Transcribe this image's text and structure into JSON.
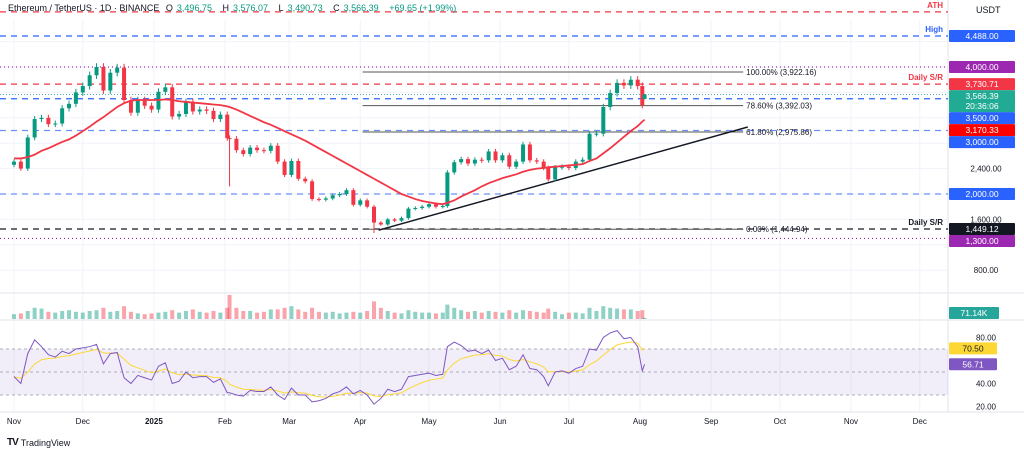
{
  "header": {
    "symbol": "Ethereum / TetherUS · 1D · BINANCE",
    "open_label": "O",
    "open": "3,496.75",
    "high_label": "H",
    "high": "3,576.07",
    "low_label": "L",
    "low": "3,490.73",
    "close_label": "C",
    "close": "3,566.39",
    "change": "+69.65 (+1.99%)"
  },
  "currency": "USDT",
  "branding": {
    "logo_text": "TradingView",
    "logo_mark": "17"
  },
  "colors": {
    "up": "#089981",
    "down": "#f23645",
    "ma": "#f23645",
    "rsi": "#7e57c2",
    "rsi_ma": "#fdd835",
    "level_blue": "#2962ff",
    "level_light_blue": "#6e8ff7",
    "level_purple": "#9c27b0",
    "level_red": "#f23645",
    "level_black": "#131722"
  },
  "chart_data": {
    "type": "candlestick",
    "title": "",
    "x_ticks": [
      "Nov",
      "Dec",
      "2025",
      "Feb",
      "Mar",
      "Apr",
      "May",
      "Jun",
      "Jul",
      "Aug",
      "Sep",
      "Oct",
      "Nov",
      "Dec"
    ],
    "x_tick_dates": [
      "2024-11-01",
      "2024-12-01",
      "2025-01-01",
      "2025-02-01",
      "2025-03-01",
      "2025-04-01",
      "2025-05-01",
      "2025-06-01",
      "2025-07-01",
      "2025-08-01",
      "2025-09-01",
      "2025-10-01",
      "2025-11-01",
      "2025-12-01"
    ],
    "y_ticks": [
      "2,400.00",
      "1,600.00",
      "800.00"
    ],
    "y_tick_values": [
      2400,
      1600,
      800
    ],
    "grid": true,
    "series": [
      {
        "d": "2024-11-01",
        "c": 2510,
        "ma": 2560,
        "rsi": 46,
        "v": 300
      },
      {
        "d": "2024-11-04",
        "c": 2400,
        "ma": 2560,
        "rsi": 40,
        "v": 350
      },
      {
        "d": "2024-11-07",
        "c": 2890,
        "ma": 2580,
        "rsi": 66,
        "v": 500
      },
      {
        "d": "2024-11-10",
        "c": 3180,
        "ma": 2620,
        "rsi": 78,
        "v": 700
      },
      {
        "d": "2024-11-13",
        "c": 3200,
        "ma": 2680,
        "rsi": 72,
        "v": 650
      },
      {
        "d": "2024-11-16",
        "c": 3100,
        "ma": 2720,
        "rsi": 65,
        "v": 450
      },
      {
        "d": "2024-11-19",
        "c": 3110,
        "ma": 2770,
        "rsi": 63,
        "v": 400
      },
      {
        "d": "2024-11-22",
        "c": 3350,
        "ma": 2820,
        "rsi": 68,
        "v": 500
      },
      {
        "d": "2024-11-25",
        "c": 3420,
        "ma": 2860,
        "rsi": 66,
        "v": 550
      },
      {
        "d": "2024-11-28",
        "c": 3600,
        "ma": 2920,
        "rsi": 70,
        "v": 450
      },
      {
        "d": "2024-12-01",
        "c": 3700,
        "ma": 2990,
        "rsi": 71,
        "v": 400
      },
      {
        "d": "2024-12-04",
        "c": 3870,
        "ma": 3060,
        "rsi": 72,
        "v": 500
      },
      {
        "d": "2024-12-07",
        "c": 4000,
        "ma": 3140,
        "rsi": 74,
        "v": 550
      },
      {
        "d": "2024-12-10",
        "c": 3630,
        "ma": 3210,
        "rsi": 57,
        "v": 700
      },
      {
        "d": "2024-12-13",
        "c": 3910,
        "ma": 3290,
        "rsi": 66,
        "v": 450
      },
      {
        "d": "2024-12-16",
        "c": 3990,
        "ma": 3370,
        "rsi": 67,
        "v": 500
      },
      {
        "d": "2024-12-19",
        "c": 3480,
        "ma": 3430,
        "rsi": 45,
        "v": 800
      },
      {
        "d": "2024-12-22",
        "c": 3280,
        "ma": 3470,
        "rsi": 40,
        "v": 450
      },
      {
        "d": "2024-12-25",
        "c": 3480,
        "ma": 3480,
        "rsi": 47,
        "v": 350
      },
      {
        "d": "2024-12-28",
        "c": 3390,
        "ma": 3480,
        "rsi": 45,
        "v": 300
      },
      {
        "d": "2024-12-31",
        "c": 3330,
        "ma": 3480,
        "rsi": 43,
        "v": 350
      },
      {
        "d": "2025-01-03",
        "c": 3610,
        "ma": 3480,
        "rsi": 55,
        "v": 400
      },
      {
        "d": "2025-01-06",
        "c": 3680,
        "ma": 3490,
        "rsi": 58,
        "v": 450
      },
      {
        "d": "2025-01-09",
        "c": 3220,
        "ma": 3480,
        "rsi": 40,
        "v": 550
      },
      {
        "d": "2025-01-12",
        "c": 3260,
        "ma": 3460,
        "rsi": 42,
        "v": 400
      },
      {
        "d": "2025-01-15",
        "c": 3450,
        "ma": 3450,
        "rsi": 50,
        "v": 500
      },
      {
        "d": "2025-01-18",
        "c": 3300,
        "ma": 3440,
        "rsi": 45,
        "v": 600
      },
      {
        "d": "2025-01-21",
        "c": 3330,
        "ma": 3430,
        "rsi": 46,
        "v": 450
      },
      {
        "d": "2025-01-24",
        "c": 3310,
        "ma": 3420,
        "rsi": 46,
        "v": 400
      },
      {
        "d": "2025-01-27",
        "c": 3180,
        "ma": 3410,
        "rsi": 41,
        "v": 500
      },
      {
        "d": "2025-01-30",
        "c": 3250,
        "ma": 3400,
        "rsi": 44,
        "v": 400
      },
      {
        "d": "2025-02-02",
        "c": 2880,
        "ma": 3380,
        "rsi": 32,
        "v": 700
      },
      {
        "d": "2025-02-03",
        "c": 2870,
        "ma": 3370,
        "rsi": 32,
        "v": 1500,
        "l": 2120
      },
      {
        "d": "2025-02-06",
        "c": 2690,
        "ma": 3330,
        "rsi": 30,
        "v": 700
      },
      {
        "d": "2025-02-09",
        "c": 2630,
        "ma": 3280,
        "rsi": 29,
        "v": 500
      },
      {
        "d": "2025-02-12",
        "c": 2730,
        "ma": 3230,
        "rsi": 34,
        "v": 500
      },
      {
        "d": "2025-02-15",
        "c": 2690,
        "ma": 3180,
        "rsi": 33,
        "v": 400
      },
      {
        "d": "2025-02-18",
        "c": 2680,
        "ma": 3130,
        "rsi": 33,
        "v": 450
      },
      {
        "d": "2025-02-21",
        "c": 2760,
        "ma": 3090,
        "rsi": 37,
        "v": 600
      },
      {
        "d": "2025-02-24",
        "c": 2510,
        "ma": 3040,
        "rsi": 30,
        "v": 600
      },
      {
        "d": "2025-02-27",
        "c": 2300,
        "ma": 2990,
        "rsi": 26,
        "v": 700
      },
      {
        "d": "2025-03-02",
        "c": 2520,
        "ma": 2940,
        "rsi": 36,
        "v": 800
      },
      {
        "d": "2025-03-05",
        "c": 2240,
        "ma": 2890,
        "rsi": 30,
        "v": 600
      },
      {
        "d": "2025-03-08",
        "c": 2200,
        "ma": 2840,
        "rsi": 30,
        "v": 450
      },
      {
        "d": "2025-03-11",
        "c": 1920,
        "ma": 2780,
        "rsi": 24,
        "v": 700
      },
      {
        "d": "2025-03-14",
        "c": 1910,
        "ma": 2720,
        "rsi": 25,
        "v": 450
      },
      {
        "d": "2025-03-17",
        "c": 1930,
        "ma": 2660,
        "rsi": 27,
        "v": 400
      },
      {
        "d": "2025-03-20",
        "c": 1980,
        "ma": 2600,
        "rsi": 31,
        "v": 450
      },
      {
        "d": "2025-03-23",
        "c": 2000,
        "ma": 2540,
        "rsi": 33,
        "v": 350
      },
      {
        "d": "2025-03-26",
        "c": 2060,
        "ma": 2480,
        "rsi": 37,
        "v": 400
      },
      {
        "d": "2025-03-29",
        "c": 1830,
        "ma": 2420,
        "rsi": 31,
        "v": 450
      },
      {
        "d": "2025-04-01",
        "c": 1900,
        "ma": 2360,
        "rsi": 34,
        "v": 400
      },
      {
        "d": "2025-04-04",
        "c": 1800,
        "ma": 2300,
        "rsi": 30,
        "v": 500
      },
      {
        "d": "2025-04-07",
        "c": 1550,
        "ma": 2240,
        "rsi": 22,
        "v": 1100,
        "l": 1385
      },
      {
        "d": "2025-04-10",
        "c": 1520,
        "ma": 2180,
        "rsi": 27,
        "v": 700
      },
      {
        "d": "2025-04-13",
        "c": 1600,
        "ma": 2120,
        "rsi": 35,
        "v": 500
      },
      {
        "d": "2025-04-16",
        "c": 1580,
        "ma": 2060,
        "rsi": 33,
        "v": 400
      },
      {
        "d": "2025-04-19",
        "c": 1620,
        "ma": 2000,
        "rsi": 35,
        "v": 350
      },
      {
        "d": "2025-04-22",
        "c": 1770,
        "ma": 1960,
        "rsi": 46,
        "v": 550
      },
      {
        "d": "2025-04-25",
        "c": 1780,
        "ma": 1920,
        "rsi": 47,
        "v": 450
      },
      {
        "d": "2025-04-28",
        "c": 1800,
        "ma": 1890,
        "rsi": 48,
        "v": 400
      },
      {
        "d": "2025-05-01",
        "c": 1840,
        "ma": 1870,
        "rsi": 49,
        "v": 400
      },
      {
        "d": "2025-05-04",
        "c": 1800,
        "ma": 1850,
        "rsi": 47,
        "v": 350
      },
      {
        "d": "2025-05-07",
        "c": 1810,
        "ma": 1840,
        "rsi": 48,
        "v": 400
      },
      {
        "d": "2025-05-09",
        "c": 2340,
        "ma": 1860,
        "rsi": 72,
        "v": 900
      },
      {
        "d": "2025-05-12",
        "c": 2500,
        "ma": 1900,
        "rsi": 76,
        "v": 700
      },
      {
        "d": "2025-05-15",
        "c": 2550,
        "ma": 1960,
        "rsi": 73,
        "v": 550
      },
      {
        "d": "2025-05-18",
        "c": 2480,
        "ma": 2010,
        "rsi": 68,
        "v": 450
      },
      {
        "d": "2025-05-21",
        "c": 2540,
        "ma": 2060,
        "rsi": 69,
        "v": 500
      },
      {
        "d": "2025-05-24",
        "c": 2530,
        "ma": 2120,
        "rsi": 66,
        "v": 400
      },
      {
        "d": "2025-05-27",
        "c": 2670,
        "ma": 2170,
        "rsi": 69,
        "v": 500
      },
      {
        "d": "2025-05-30",
        "c": 2530,
        "ma": 2210,
        "rsi": 60,
        "v": 450
      },
      {
        "d": "2025-06-02",
        "c": 2610,
        "ma": 2250,
        "rsi": 62,
        "v": 400
      },
      {
        "d": "2025-06-05",
        "c": 2430,
        "ma": 2280,
        "rsi": 52,
        "v": 550
      },
      {
        "d": "2025-06-08",
        "c": 2510,
        "ma": 2310,
        "rsi": 55,
        "v": 400
      },
      {
        "d": "2025-06-11",
        "c": 2780,
        "ma": 2350,
        "rsi": 65,
        "v": 550
      },
      {
        "d": "2025-06-14",
        "c": 2530,
        "ma": 2380,
        "rsi": 53,
        "v": 500
      },
      {
        "d": "2025-06-17",
        "c": 2510,
        "ma": 2400,
        "rsi": 52,
        "v": 450
      },
      {
        "d": "2025-06-20",
        "c": 2410,
        "ma": 2410,
        "rsi": 46,
        "v": 400
      },
      {
        "d": "2025-06-22",
        "c": 2230,
        "ma": 2420,
        "rsi": 38,
        "v": 650
      },
      {
        "d": "2025-06-25",
        "c": 2420,
        "ma": 2430,
        "rsi": 50,
        "v": 450
      },
      {
        "d": "2025-06-28",
        "c": 2430,
        "ma": 2440,
        "rsi": 51,
        "v": 300
      },
      {
        "d": "2025-07-01",
        "c": 2410,
        "ma": 2450,
        "rsi": 49,
        "v": 400
      },
      {
        "d": "2025-07-04",
        "c": 2510,
        "ma": 2460,
        "rsi": 53,
        "v": 400
      },
      {
        "d": "2025-07-07",
        "c": 2540,
        "ma": 2470,
        "rsi": 55,
        "v": 350
      },
      {
        "d": "2025-07-10",
        "c": 2950,
        "ma": 2520,
        "rsi": 70,
        "v": 700
      },
      {
        "d": "2025-07-13",
        "c": 2950,
        "ma": 2560,
        "rsi": 69,
        "v": 500
      },
      {
        "d": "2025-07-16",
        "c": 3370,
        "ma": 2640,
        "rsi": 80,
        "v": 800
      },
      {
        "d": "2025-07-19",
        "c": 3590,
        "ma": 2720,
        "rsi": 84,
        "v": 700
      },
      {
        "d": "2025-07-22",
        "c": 3750,
        "ma": 2810,
        "rsi": 86,
        "v": 650
      },
      {
        "d": "2025-07-25",
        "c": 3710,
        "ma": 2900,
        "rsi": 79,
        "v": 600
      },
      {
        "d": "2025-07-28",
        "c": 3800,
        "ma": 2990,
        "rsi": 80,
        "v": 600
      },
      {
        "d": "2025-07-31",
        "c": 3700,
        "ma": 3070,
        "rsi": 72,
        "v": 500
      },
      {
        "d": "2025-08-02",
        "c": 3400,
        "ma": 3140,
        "rsi": 51,
        "v": 550
      },
      {
        "d": "2025-08-03",
        "o": 3496.75,
        "h": 3576.07,
        "l": 3490.73,
        "c": 3566.39,
        "ma": 3170.33,
        "rsi": 56.71,
        "v": 71.14
      }
    ],
    "levels": [
      {
        "price": 4868,
        "style": "dashed",
        "color": "#f23645",
        "text": "ATH"
      },
      {
        "price": 4488,
        "style": "dashed",
        "color": "#2962ff",
        "text": "High",
        "axis_label": "4,488.00"
      },
      {
        "price": 4000,
        "style": "dotted",
        "color": "#9c27b0",
        "axis_label": "4,000.00"
      },
      {
        "price": 3730.71,
        "style": "dashed",
        "color": "#f23645",
        "text": "Daily S/R",
        "axis_label": "3,730.71"
      },
      {
        "price": 3500,
        "style": "dashed",
        "color": "#2962ff",
        "axis_label": "3,500.00"
      },
      {
        "price": 3000,
        "style": "dashed",
        "color": "#6e8ff7",
        "axis_label": "3,000.00"
      },
      {
        "price": 2000,
        "style": "dashed",
        "color": "#6e8ff7",
        "axis_label": "2,000.00"
      },
      {
        "price": 1449.12,
        "style": "dashed",
        "color": "#131722",
        "text": "Daily S/R",
        "axis_label": "1,449.12"
      },
      {
        "price": 1300,
        "style": "dotted",
        "color": "#9c27b0",
        "axis_label": "1,300.00"
      }
    ],
    "current_price": {
      "price": 3566.39,
      "label": "3,566.39",
      "countdown": "20:36:06"
    },
    "ma_label": "3,170.33",
    "fibonacci": {
      "start": "2025-04-02",
      "end": "2025-09-15",
      "levels": [
        {
          "price": 3922.16,
          "text": "100.00% (3,922.16)"
        },
        {
          "price": 3392.03,
          "text": "78.60% (3,392.03)"
        },
        {
          "price": 2975.86,
          "text": "61.80% (2,975.86)"
        },
        {
          "price": 1444.94,
          "text": "0.00% (1,444.94)"
        }
      ]
    },
    "trendline": {
      "from": {
        "d": "2025-04-09",
        "p": 1430
      },
      "to": {
        "d": "2025-09-17",
        "p": 3055
      }
    },
    "volume": {
      "last_label": "71.14K"
    },
    "rsi": {
      "y_ticks": [
        "80.00",
        "40.00",
        "20.00"
      ],
      "y_tick_values": [
        80,
        40,
        20
      ],
      "band": [
        30,
        70
      ],
      "mid": 50,
      "rsi_label": "56.71",
      "rsi_value": 56.71,
      "ma_label": "70.50",
      "ma_value": 70.5
    }
  }
}
